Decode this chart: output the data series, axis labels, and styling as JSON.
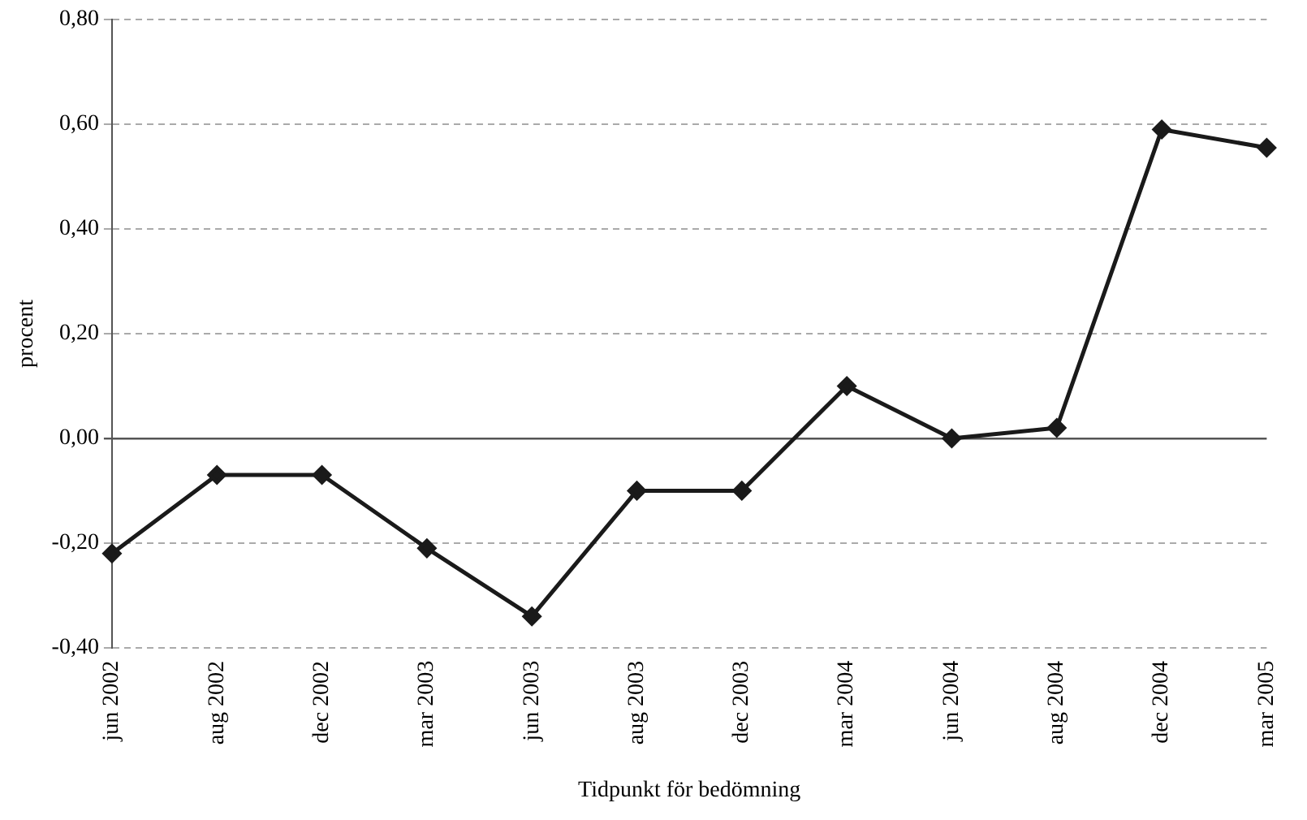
{
  "chart_data": {
    "type": "line",
    "xlabel": "Tidpunkt för bedömning",
    "ylabel": "procent",
    "categories": [
      "jun 2002",
      "aug 2002",
      "dec 2002",
      "mar 2003",
      "jun 2003",
      "aug 2003",
      "dec 2003",
      "mar 2004",
      "jun 2004",
      "aug 2004",
      "dec 2004",
      "mar 2005"
    ],
    "series": [
      {
        "color": "#1a1a1a",
        "values": [
          -0.22,
          -0.07,
          -0.07,
          -0.21,
          -0.34,
          -0.1,
          -0.1,
          0.1,
          0.0,
          0.02,
          0.59,
          0.555
        ]
      }
    ],
    "ylim": [
      -0.4,
      0.8
    ],
    "yticks": [
      {
        "value": -0.4,
        "label": "-0,40"
      },
      {
        "value": -0.2,
        "label": "-0,20"
      },
      {
        "value": 0,
        "label": "0,00"
      },
      {
        "value": 0.2,
        "label": "0,20"
      },
      {
        "value": 0.4,
        "label": "0,40"
      },
      {
        "value": 0.6,
        "label": "0,60"
      },
      {
        "value": 0.8,
        "label": "0,80"
      }
    ],
    "grid": "y",
    "legend": false,
    "marker": "diamond",
    "line_style": "solid"
  }
}
